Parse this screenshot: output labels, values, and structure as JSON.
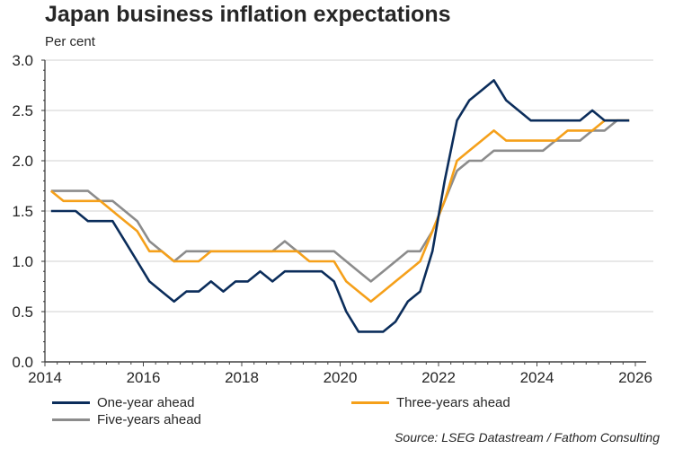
{
  "chart_data": {
    "type": "line",
    "title": "Japan business inflation expectations",
    "subtitle": "Per cent",
    "xlabel": "",
    "ylabel": "Per cent",
    "xlim": [
      2014,
      2026
    ],
    "ylim": [
      0.0,
      3.0
    ],
    "x_ticks": [
      "2014",
      "2016",
      "2018",
      "2020",
      "2022",
      "2024",
      "2026"
    ],
    "y_ticks": [
      "0.0",
      "0.5",
      "1.0",
      "1.5",
      "2.0",
      "2.5",
      "3.0"
    ],
    "grid": true,
    "legend_position": "bottom",
    "x": [
      2014.125,
      2014.375,
      2014.625,
      2014.875,
      2015.125,
      2015.375,
      2015.625,
      2015.875,
      2016.125,
      2016.375,
      2016.625,
      2016.875,
      2017.125,
      2017.375,
      2017.625,
      2017.875,
      2018.125,
      2018.375,
      2018.625,
      2018.875,
      2019.125,
      2019.375,
      2019.625,
      2019.875,
      2020.125,
      2020.375,
      2020.625,
      2020.875,
      2021.125,
      2021.375,
      2021.625,
      2021.875,
      2022.125,
      2022.375,
      2022.625,
      2022.875,
      2023.125,
      2023.375,
      2023.625,
      2023.875,
      2024.125,
      2024.375,
      2024.625,
      2024.875,
      2025.125,
      2025.375,
      2025.625,
      2025.875
    ],
    "series": [
      {
        "name": "One-year ahead",
        "color": "#0b2d5b",
        "values": [
          1.5,
          1.5,
          1.5,
          1.4,
          1.4,
          1.4,
          1.2,
          1.0,
          0.8,
          0.7,
          0.6,
          0.7,
          0.7,
          0.8,
          0.7,
          0.8,
          0.8,
          0.9,
          0.8,
          0.9,
          0.9,
          0.9,
          0.9,
          0.8,
          0.5,
          0.3,
          0.3,
          0.3,
          0.4,
          0.6,
          0.7,
          1.1,
          1.8,
          2.4,
          2.6,
          2.7,
          2.8,
          2.6,
          2.5,
          2.4,
          2.4,
          2.4,
          2.4,
          2.4,
          2.5,
          2.4,
          2.4,
          2.4
        ]
      },
      {
        "name": "Three-years ahead",
        "color": "#f5a01a",
        "values": [
          1.7,
          1.6,
          1.6,
          1.6,
          1.6,
          1.5,
          1.4,
          1.3,
          1.1,
          1.1,
          1.0,
          1.0,
          1.0,
          1.1,
          1.1,
          1.1,
          1.1,
          1.1,
          1.1,
          1.1,
          1.1,
          1.0,
          1.0,
          1.0,
          0.8,
          0.7,
          0.6,
          0.7,
          0.8,
          0.9,
          1.0,
          1.3,
          1.6,
          2.0,
          2.1,
          2.2,
          2.3,
          2.2,
          2.2,
          2.2,
          2.2,
          2.2,
          2.3,
          2.3,
          2.3,
          2.4,
          2.4,
          2.4
        ]
      },
      {
        "name": "Five-years ahead",
        "color": "#8c8c8c",
        "values": [
          1.7,
          1.7,
          1.7,
          1.7,
          1.6,
          1.6,
          1.5,
          1.4,
          1.2,
          1.1,
          1.0,
          1.1,
          1.1,
          1.1,
          1.1,
          1.1,
          1.1,
          1.1,
          1.1,
          1.2,
          1.1,
          1.1,
          1.1,
          1.1,
          1.0,
          0.9,
          0.8,
          0.9,
          1.0,
          1.1,
          1.1,
          1.3,
          1.6,
          1.9,
          2.0,
          2.0,
          2.1,
          2.1,
          2.1,
          2.1,
          2.1,
          2.2,
          2.2,
          2.2,
          2.3,
          2.3,
          2.4,
          2.4
        ]
      }
    ],
    "source": "Source: LSEG Datastream / Fathom Consulting"
  },
  "legend": [
    {
      "label": "One-year ahead",
      "color": "#0b2d5b"
    },
    {
      "label": "Three-years ahead",
      "color": "#f5a01a"
    },
    {
      "label": "Five-years ahead",
      "color": "#8c8c8c"
    }
  ]
}
